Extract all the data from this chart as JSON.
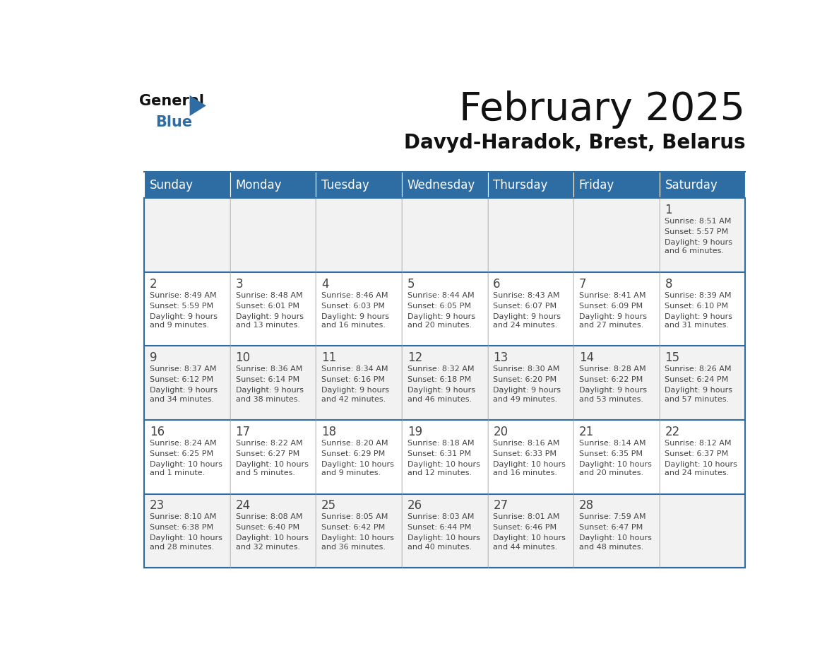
{
  "title": "February 2025",
  "subtitle": "Davyd-Haradok, Brest, Belarus",
  "header_color": "#2e6da4",
  "header_text_color": "#ffffff",
  "cell_bg_even": "#f2f2f2",
  "cell_bg_odd": "#ffffff",
  "border_color": "#2e6da4",
  "text_color": "#444444",
  "days_of_week": [
    "Sunday",
    "Monday",
    "Tuesday",
    "Wednesday",
    "Thursday",
    "Friday",
    "Saturday"
  ],
  "calendar_data": [
    [
      null,
      null,
      null,
      null,
      null,
      null,
      {
        "day": "1",
        "sunrise": "8:51 AM",
        "sunset": "5:57 PM",
        "daylight": "9 hours\nand 6 minutes."
      }
    ],
    [
      {
        "day": "2",
        "sunrise": "8:49 AM",
        "sunset": "5:59 PM",
        "daylight": "9 hours\nand 9 minutes."
      },
      {
        "day": "3",
        "sunrise": "8:48 AM",
        "sunset": "6:01 PM",
        "daylight": "9 hours\nand 13 minutes."
      },
      {
        "day": "4",
        "sunrise": "8:46 AM",
        "sunset": "6:03 PM",
        "daylight": "9 hours\nand 16 minutes."
      },
      {
        "day": "5",
        "sunrise": "8:44 AM",
        "sunset": "6:05 PM",
        "daylight": "9 hours\nand 20 minutes."
      },
      {
        "day": "6",
        "sunrise": "8:43 AM",
        "sunset": "6:07 PM",
        "daylight": "9 hours\nand 24 minutes."
      },
      {
        "day": "7",
        "sunrise": "8:41 AM",
        "sunset": "6:09 PM",
        "daylight": "9 hours\nand 27 minutes."
      },
      {
        "day": "8",
        "sunrise": "8:39 AM",
        "sunset": "6:10 PM",
        "daylight": "9 hours\nand 31 minutes."
      }
    ],
    [
      {
        "day": "9",
        "sunrise": "8:37 AM",
        "sunset": "6:12 PM",
        "daylight": "9 hours\nand 34 minutes."
      },
      {
        "day": "10",
        "sunrise": "8:36 AM",
        "sunset": "6:14 PM",
        "daylight": "9 hours\nand 38 minutes."
      },
      {
        "day": "11",
        "sunrise": "8:34 AM",
        "sunset": "6:16 PM",
        "daylight": "9 hours\nand 42 minutes."
      },
      {
        "day": "12",
        "sunrise": "8:32 AM",
        "sunset": "6:18 PM",
        "daylight": "9 hours\nand 46 minutes."
      },
      {
        "day": "13",
        "sunrise": "8:30 AM",
        "sunset": "6:20 PM",
        "daylight": "9 hours\nand 49 minutes."
      },
      {
        "day": "14",
        "sunrise": "8:28 AM",
        "sunset": "6:22 PM",
        "daylight": "9 hours\nand 53 minutes."
      },
      {
        "day": "15",
        "sunrise": "8:26 AM",
        "sunset": "6:24 PM",
        "daylight": "9 hours\nand 57 minutes."
      }
    ],
    [
      {
        "day": "16",
        "sunrise": "8:24 AM",
        "sunset": "6:25 PM",
        "daylight": "10 hours\nand 1 minute."
      },
      {
        "day": "17",
        "sunrise": "8:22 AM",
        "sunset": "6:27 PM",
        "daylight": "10 hours\nand 5 minutes."
      },
      {
        "day": "18",
        "sunrise": "8:20 AM",
        "sunset": "6:29 PM",
        "daylight": "10 hours\nand 9 minutes."
      },
      {
        "day": "19",
        "sunrise": "8:18 AM",
        "sunset": "6:31 PM",
        "daylight": "10 hours\nand 12 minutes."
      },
      {
        "day": "20",
        "sunrise": "8:16 AM",
        "sunset": "6:33 PM",
        "daylight": "10 hours\nand 16 minutes."
      },
      {
        "day": "21",
        "sunrise": "8:14 AM",
        "sunset": "6:35 PM",
        "daylight": "10 hours\nand 20 minutes."
      },
      {
        "day": "22",
        "sunrise": "8:12 AM",
        "sunset": "6:37 PM",
        "daylight": "10 hours\nand 24 minutes."
      }
    ],
    [
      {
        "day": "23",
        "sunrise": "8:10 AM",
        "sunset": "6:38 PM",
        "daylight": "10 hours\nand 28 minutes."
      },
      {
        "day": "24",
        "sunrise": "8:08 AM",
        "sunset": "6:40 PM",
        "daylight": "10 hours\nand 32 minutes."
      },
      {
        "day": "25",
        "sunrise": "8:05 AM",
        "sunset": "6:42 PM",
        "daylight": "10 hours\nand 36 minutes."
      },
      {
        "day": "26",
        "sunrise": "8:03 AM",
        "sunset": "6:44 PM",
        "daylight": "10 hours\nand 40 minutes."
      },
      {
        "day": "27",
        "sunrise": "8:01 AM",
        "sunset": "6:46 PM",
        "daylight": "10 hours\nand 44 minutes."
      },
      {
        "day": "28",
        "sunrise": "7:59 AM",
        "sunset": "6:47 PM",
        "daylight": "10 hours\nand 48 minutes."
      },
      null
    ]
  ],
  "logo_general_color": "#111111",
  "logo_blue_color": "#2e6da4",
  "title_fontsize": 40,
  "subtitle_fontsize": 20,
  "day_header_fontsize": 12,
  "day_num_fontsize": 12,
  "cell_text_fontsize": 8
}
